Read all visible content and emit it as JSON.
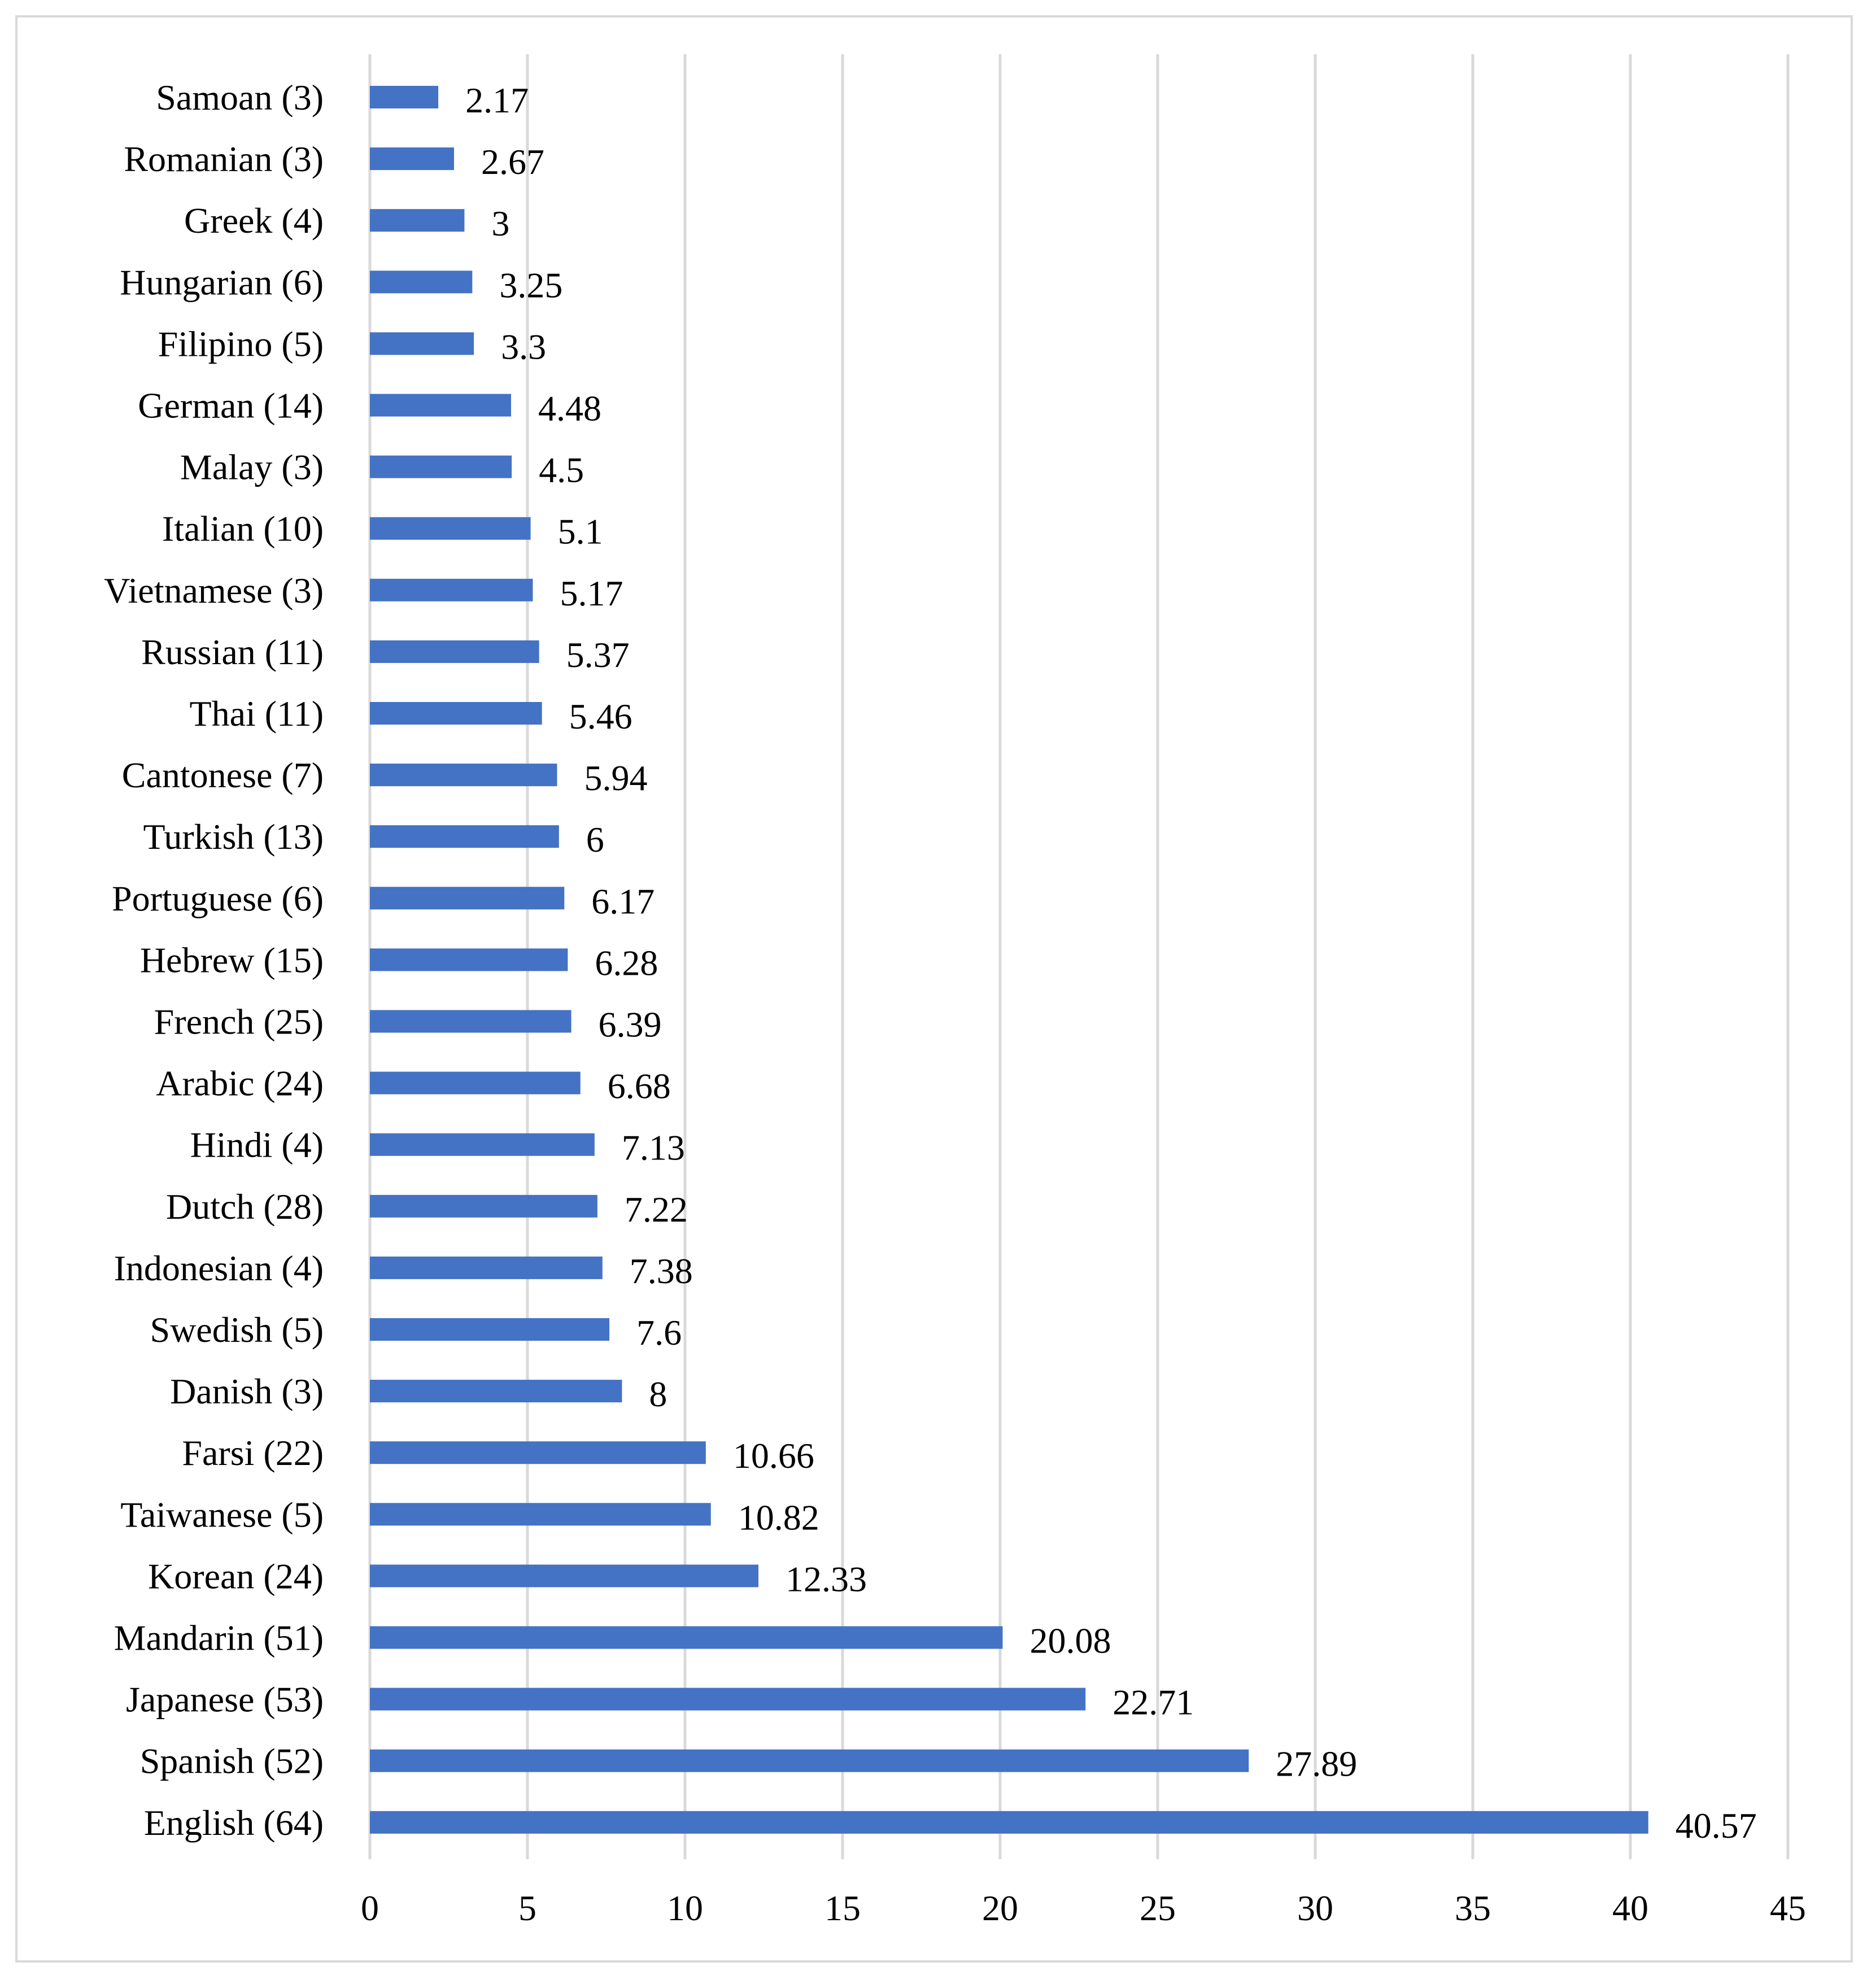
{
  "chart_data": {
    "type": "bar",
    "orientation": "horizontal",
    "title": "",
    "xlabel": "",
    "ylabel": "",
    "xlim": [
      0,
      45
    ],
    "x_ticks": [
      "0",
      "5",
      "10",
      "15",
      "20",
      "25",
      "30",
      "35",
      "40",
      "45"
    ],
    "grid": "vertical",
    "legend": "none",
    "bar_color": "#4472c4",
    "gridline_color": "#d9d9d9",
    "categories": [
      "Samoan (3)",
      "Romanian (3)",
      "Greek (4)",
      "Hungarian (6)",
      "Filipino (5)",
      "German (14)",
      "Malay (3)",
      "Italian (10)",
      "Vietnamese (3)",
      "Russian (11)",
      "Thai (11)",
      "Cantonese (7)",
      "Turkish (13)",
      "Portuguese (6)",
      "Hebrew (15)",
      "French (25)",
      "Arabic (24)",
      "Hindi (4)",
      "Dutch (28)",
      "Indonesian (4)",
      "Swedish (5)",
      "Danish (3)",
      "Farsi (22)",
      "Taiwanese (5)",
      "Korean (24)",
      "Mandarin (51)",
      "Japanese (53)",
      "Spanish (52)",
      "English (64)"
    ],
    "values": [
      2.17,
      2.67,
      3,
      3.25,
      3.3,
      4.48,
      4.5,
      5.1,
      5.17,
      5.37,
      5.46,
      5.94,
      6,
      6.17,
      6.28,
      6.39,
      6.68,
      7.13,
      7.22,
      7.38,
      7.6,
      8,
      10.66,
      10.82,
      12.33,
      20.08,
      22.71,
      27.89,
      40.57
    ],
    "value_labels": [
      "2.17",
      "2.67",
      "3",
      "3.25",
      "3.3",
      "4.48",
      "4.5",
      "5.1",
      "5.17",
      "5.37",
      "5.46",
      "5.94",
      "6",
      "6.17",
      "6.28",
      "6.39",
      "6.68",
      "7.13",
      "7.22",
      "7.38",
      "7.6",
      "8",
      "10.66",
      "10.82",
      "12.33",
      "20.08",
      "22.71",
      "27.89",
      "40.57"
    ]
  }
}
